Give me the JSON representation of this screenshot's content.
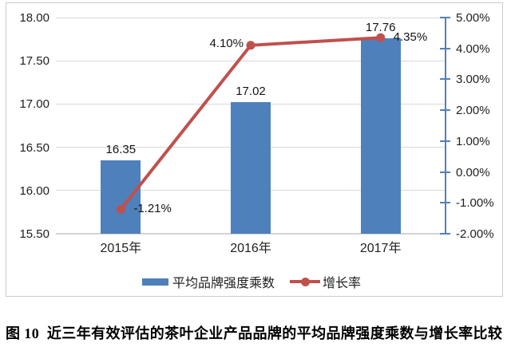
{
  "caption": "图 10  近三年有效评估的茶叶企业产品品牌的平均品牌强度乘数与增长率比较",
  "chart_data": {
    "type": "bar+line combo",
    "categories": [
      "2015年",
      "2016年",
      "2017年"
    ],
    "series": [
      {
        "name": "平均品牌强度乘数",
        "type": "bar",
        "axis": "left",
        "values": [
          16.35,
          17.02,
          17.76
        ],
        "labels": [
          "16.35",
          "17.02",
          "17.76"
        ],
        "color": "#4e80bc"
      },
      {
        "name": "增长率",
        "type": "line",
        "axis": "right",
        "values": [
          -1.21,
          4.1,
          4.35
        ],
        "labels": [
          "-1.21%",
          "4.10%",
          "4.35%"
        ],
        "label_side": [
          "right",
          "left",
          "right"
        ],
        "color": "#c0504d"
      }
    ],
    "left_axis": {
      "min": 15.5,
      "max": 18.0,
      "tick_values": [
        18.0,
        17.5,
        17.0,
        16.5,
        16.0,
        15.5
      ],
      "tick_labels": [
        "18.00",
        "17.50",
        "17.00",
        "16.50",
        "16.00",
        "15.50"
      ]
    },
    "right_axis": {
      "min": -2.0,
      "max": 5.0,
      "tick_values": [
        5,
        4,
        3,
        2,
        1,
        0,
        -1,
        -2
      ],
      "tick_labels": [
        "5.00%",
        "4.00%",
        "3.00%",
        "2.00%",
        "1.00%",
        "0.00%",
        "-1.00%",
        "-2.00%"
      ],
      "color": "#4f81bd"
    },
    "grid": true,
    "gridline_color": "#d9d9d9",
    "legend_position": "bottom"
  }
}
